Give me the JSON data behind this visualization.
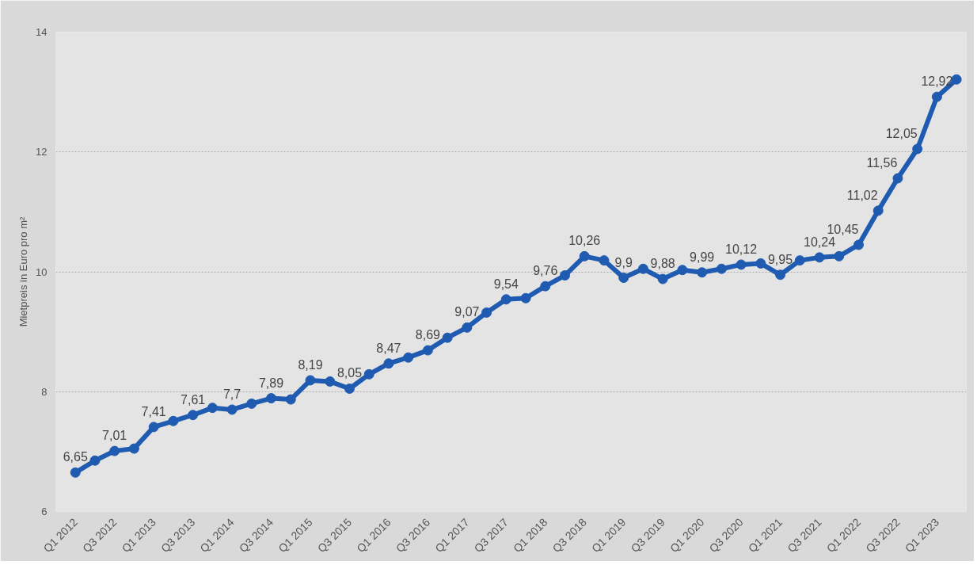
{
  "chart_data": {
    "type": "line",
    "ylabel": "Mietpreis in Euro pro m²",
    "categories": [
      "Q1 2012",
      null,
      "Q3 2012",
      null,
      "Q1 2013",
      null,
      "Q3 2013",
      null,
      "Q1 2014",
      null,
      "Q3 2014",
      null,
      "Q1 2015",
      null,
      "Q3 2015",
      null,
      "Q1 2016",
      null,
      "Q3 2016",
      null,
      "Q1 2017",
      null,
      "Q3 2017",
      null,
      "Q1 2018",
      null,
      "Q3 2018",
      null,
      "Q1 2019",
      null,
      "Q3 2019",
      null,
      "Q1 2020",
      null,
      "Q3 2020",
      null,
      "Q1 2021",
      null,
      "Q3 2021",
      null,
      "Q1 2022",
      null,
      "Q3 2022",
      null,
      "Q1 2023",
      null
    ],
    "series": [
      {
        "color": "#1f5bb0",
        "values": [
          6.65,
          6.85,
          7.01,
          7.05,
          7.41,
          7.51,
          7.61,
          7.73,
          7.7,
          7.8,
          7.89,
          7.87,
          8.19,
          8.17,
          8.05,
          8.29,
          8.47,
          8.57,
          8.69,
          8.9,
          9.07,
          9.32,
          9.54,
          9.56,
          9.76,
          9.94,
          10.26,
          10.19,
          9.9,
          10.05,
          9.88,
          10.03,
          9.99,
          10.05,
          10.12,
          10.14,
          9.95,
          10.19,
          10.24,
          10.26,
          10.45,
          11.02,
          11.56,
          12.05,
          12.92,
          13.21
        ],
        "value_labels": [
          "6,65",
          null,
          "7,01",
          null,
          "7,41",
          null,
          "7,61",
          null,
          "7,7",
          null,
          "7,89",
          null,
          "8,19",
          null,
          "8,05",
          null,
          "8,47",
          null,
          "8,69",
          null,
          "9,07",
          null,
          "9,54",
          null,
          "9,76",
          null,
          "10,26",
          null,
          "9,9",
          null,
          "9,88",
          null,
          "9,99",
          null,
          "10,12",
          null,
          "9,95",
          null,
          "10,24",
          null,
          "10,45",
          "11,02",
          "11,56",
          "12,05",
          "12,92",
          null
        ]
      }
    ],
    "ylim": [
      6,
      14
    ],
    "yticks": [
      6,
      8,
      10,
      12,
      14
    ],
    "grid": "y",
    "marker": "circle",
    "line_style": "solid"
  }
}
